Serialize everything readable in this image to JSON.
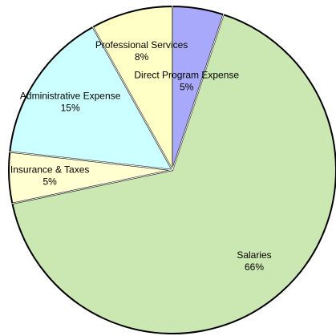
{
  "chart_data": {
    "type": "pie",
    "categories": [
      "Direct Program Expense",
      "Salaries",
      "Insurance & Taxes",
      "Administrative Expense",
      "Professional Services"
    ],
    "values": [
      5,
      66,
      5,
      15,
      8
    ],
    "value_labels": [
      "5%",
      "66%",
      "5%",
      "15%",
      "8%"
    ],
    "colors": [
      "#a9a9fb",
      "#cce8b2",
      "#ffffd2",
      "#ccffff",
      "#ffffc6"
    ]
  }
}
